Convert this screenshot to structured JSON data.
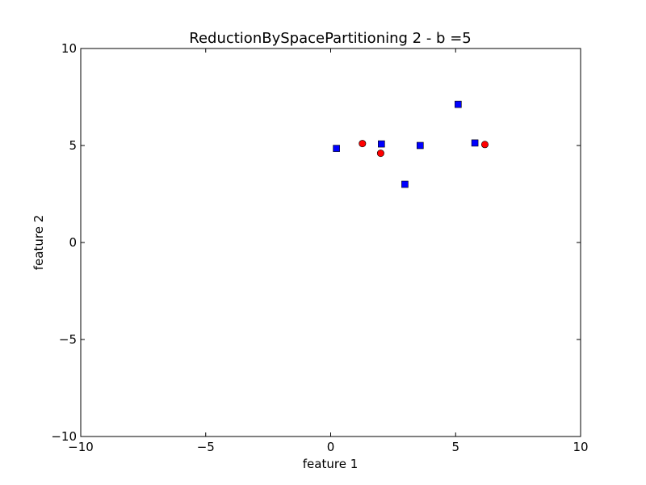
{
  "chart_data": {
    "type": "scatter",
    "title": "ReductionBySpacePartitioning 2 - b =5",
    "xlabel": "feature 1",
    "ylabel": "feature 2",
    "xlim": [
      -10,
      10
    ],
    "ylim": [
      -10,
      10
    ],
    "xticks": [
      -10,
      -5,
      0,
      5,
      10
    ],
    "yticks": [
      -10,
      -5,
      0,
      5,
      10
    ],
    "xtick_labels": [
      "−10",
      "−5",
      "0",
      "5",
      "10"
    ],
    "ytick_labels": [
      "−10",
      "−5",
      "0",
      "5",
      "10"
    ],
    "grid": false,
    "series": [
      {
        "marker": "square",
        "color": "#0000ff",
        "points": [
          {
            "x": 0.23,
            "y": 4.85
          },
          {
            "x": 2.03,
            "y": 5.08
          },
          {
            "x": 3.58,
            "y": 5.0
          },
          {
            "x": 2.97,
            "y": 3.0
          },
          {
            "x": 5.1,
            "y": 7.12
          },
          {
            "x": 5.77,
            "y": 5.13
          }
        ]
      },
      {
        "marker": "circle",
        "color": "#ff0000",
        "points": [
          {
            "x": 1.27,
            "y": 5.1
          },
          {
            "x": 2.0,
            "y": 4.6
          },
          {
            "x": 6.17,
            "y": 5.05
          }
        ]
      }
    ]
  }
}
